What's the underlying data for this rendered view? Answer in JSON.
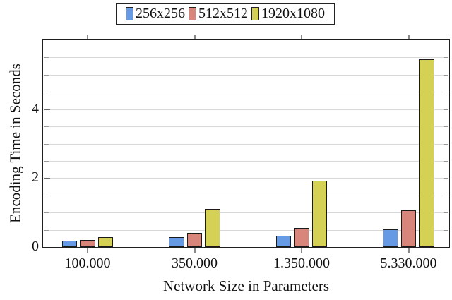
{
  "chart_data": {
    "type": "bar",
    "title": "",
    "xlabel": "Network Size in Parameters",
    "ylabel": "Encoding Time in Seconds",
    "categories": [
      "100.000",
      "350.000",
      "1.350.000",
      "5.330.000"
    ],
    "series": [
      {
        "name": "256x256",
        "color": "#669ae5",
        "values": [
          0.19,
          0.28,
          0.33,
          0.51
        ]
      },
      {
        "name": "512x512",
        "color": "#d8857c",
        "values": [
          0.2,
          0.4,
          0.55,
          1.07
        ]
      },
      {
        "name": "1920x1080",
        "color": "#d5d155",
        "values": [
          0.28,
          1.1,
          1.93,
          5.45
        ]
      }
    ],
    "ylim": [
      0,
      6
    ],
    "yticks": [
      0,
      2,
      4
    ],
    "ytick_labels": [
      "0",
      "2",
      "4"
    ],
    "minor_grid_step": 0.5,
    "grid": "on",
    "legend_position": "top-center",
    "bar_edge_color": "#1a1a1a",
    "grid_color": "#d8d8d8",
    "axis_color": "#1f1f1f",
    "tick_color": "#8a8a8a"
  }
}
